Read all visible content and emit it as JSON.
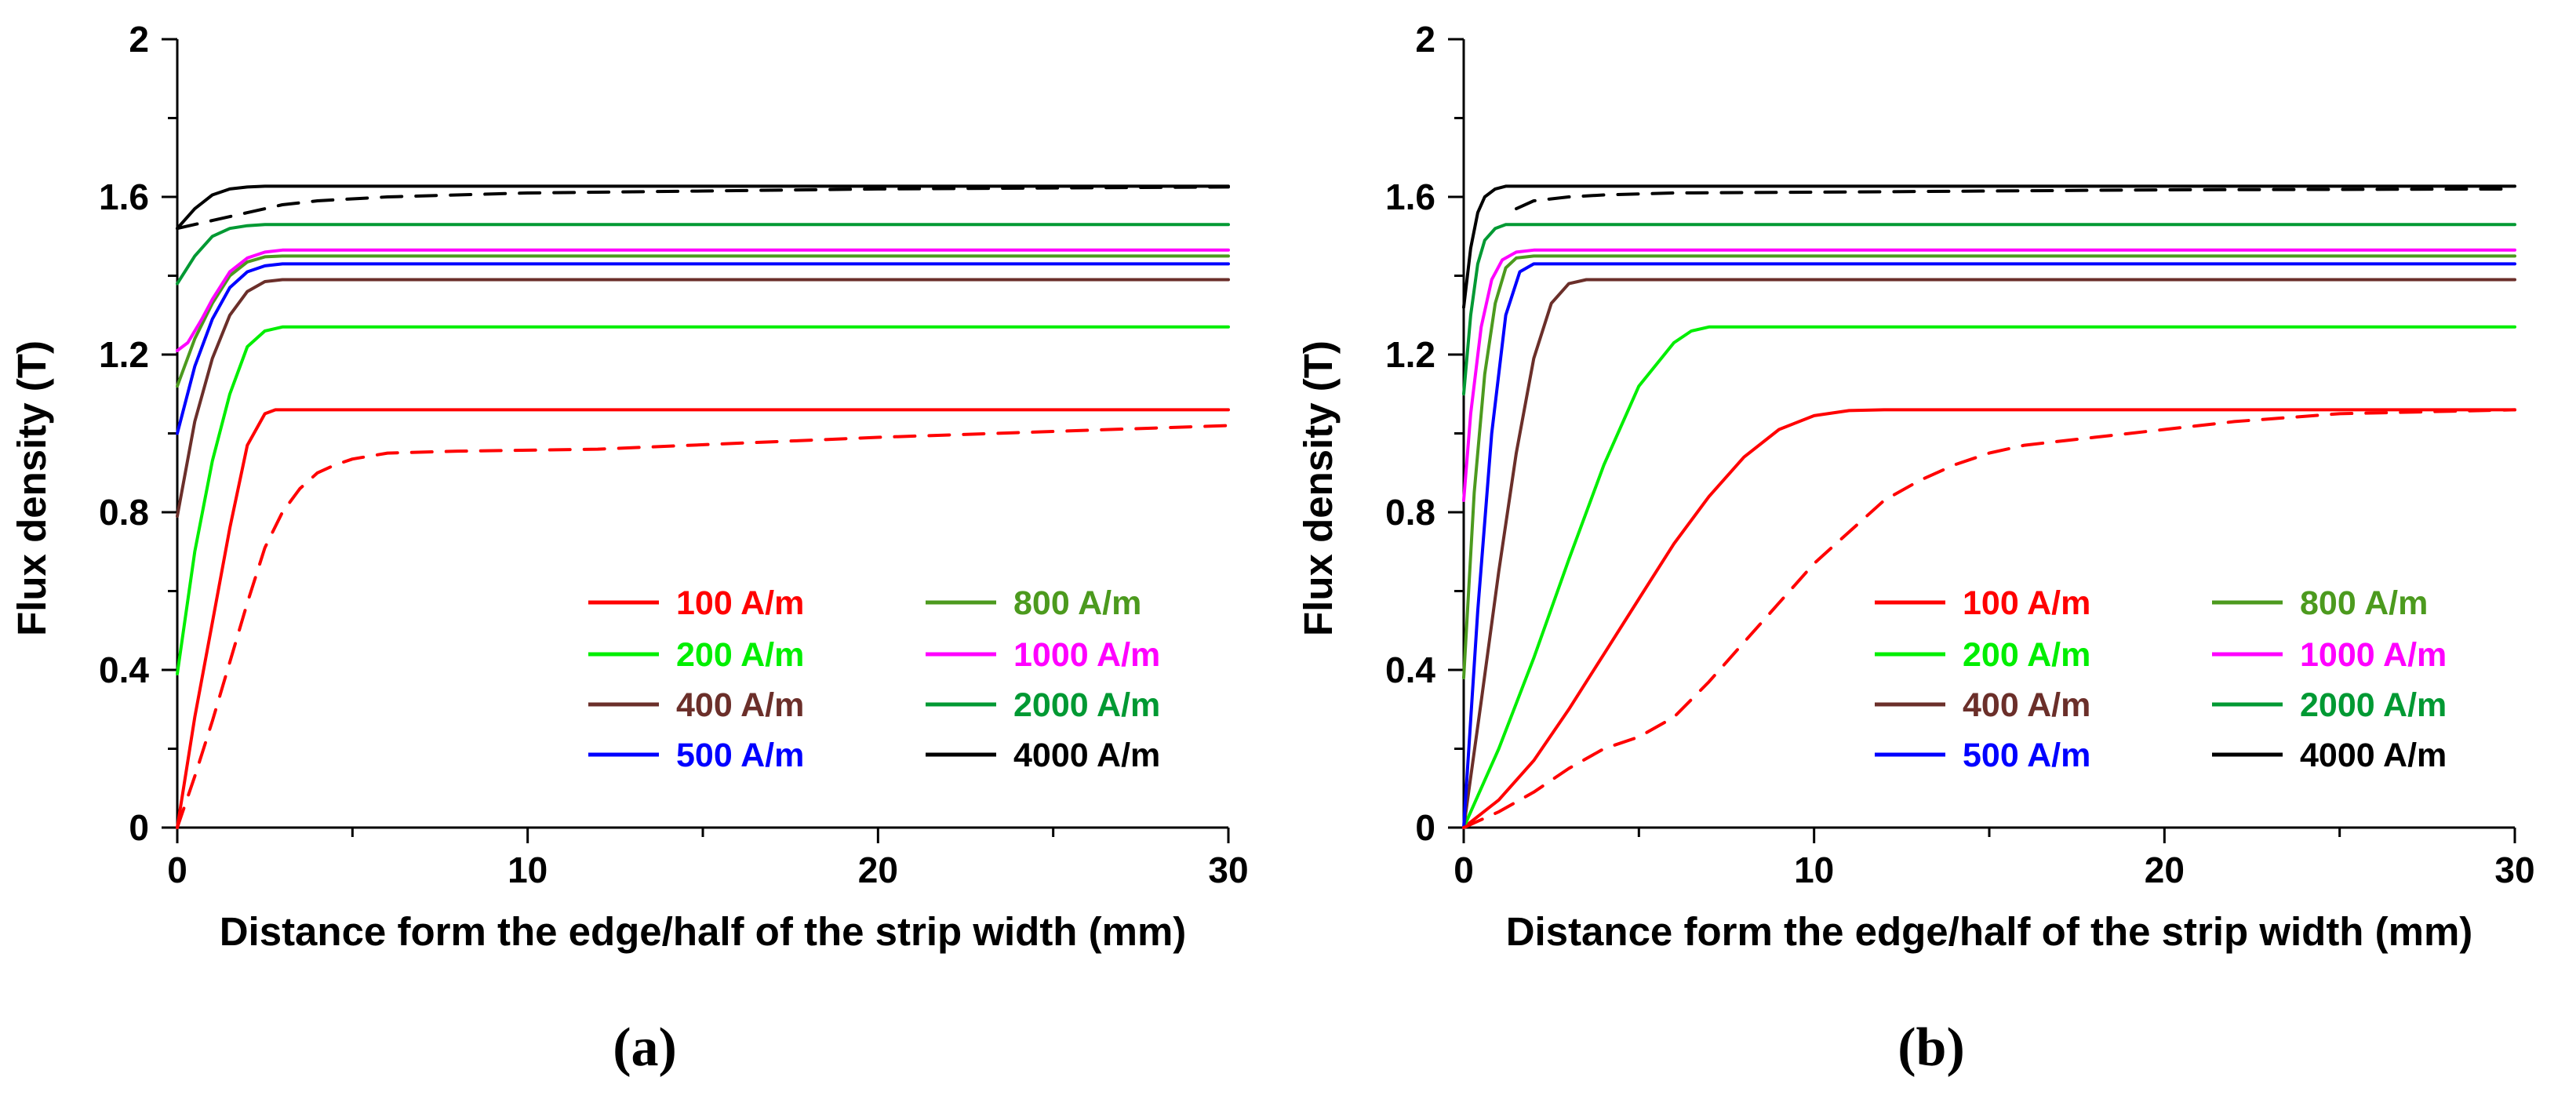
{
  "chart_data": [
    {
      "type": "line",
      "panel_label": "(a)",
      "xlabel": "Distance form the edge/half of the strip width (mm)",
      "ylabel": "Flux density (T)",
      "xlim": [
        0,
        30
      ],
      "ylim": [
        0,
        2
      ],
      "x_ticks": [
        0,
        10,
        20,
        30
      ],
      "y_ticks": [
        0,
        0.4,
        0.8,
        1.2,
        1.6,
        2
      ],
      "y_tick_labels": [
        "0",
        "0.4",
        "0.8",
        "1.2",
        "1.6",
        "2"
      ],
      "legend_placement": "bottom-right",
      "series": [
        {
          "name": "100 A/m",
          "color": "#ff0000",
          "style": "solid",
          "x": [
            0,
            0.5,
            1,
            1.5,
            2,
            2.5,
            2.8,
            3,
            30
          ],
          "y": [
            0,
            0.28,
            0.52,
            0.76,
            0.97,
            1.05,
            1.06,
            1.06,
            1.06
          ]
        },
        {
          "name": "200 A/m",
          "color": "#00ee00",
          "style": "solid",
          "x": [
            0,
            0.5,
            1,
            1.5,
            2,
            2.5,
            3,
            30
          ],
          "y": [
            0.39,
            0.7,
            0.93,
            1.1,
            1.22,
            1.26,
            1.27,
            1.27
          ]
        },
        {
          "name": "400 A/m",
          "color": "#6b2f2a",
          "style": "solid",
          "x": [
            0,
            0.5,
            1,
            1.5,
            2,
            2.5,
            3,
            30
          ],
          "y": [
            0.79,
            1.03,
            1.19,
            1.3,
            1.36,
            1.385,
            1.39,
            1.39
          ]
        },
        {
          "name": "500 A/m",
          "color": "#0000ff",
          "style": "solid",
          "x": [
            0,
            0.5,
            1,
            1.5,
            2,
            2.5,
            3,
            30
          ],
          "y": [
            1.0,
            1.17,
            1.29,
            1.37,
            1.41,
            1.425,
            1.43,
            1.43
          ]
        },
        {
          "name": "800 A/m",
          "color": "#4c9a1e",
          "style": "solid",
          "x": [
            0,
            0.5,
            1,
            1.5,
            2,
            2.5,
            3,
            30
          ],
          "y": [
            1.12,
            1.24,
            1.33,
            1.4,
            1.435,
            1.448,
            1.45,
            1.45
          ]
        },
        {
          "name": "1000 A/m",
          "color": "#ff00ff",
          "style": "solid",
          "x": [
            0,
            0.3,
            0.7,
            1,
            1.5,
            2,
            2.5,
            3,
            30
          ],
          "y": [
            1.21,
            1.23,
            1.29,
            1.34,
            1.41,
            1.445,
            1.46,
            1.465,
            1.465
          ]
        },
        {
          "name": "2000 A/m",
          "color": "#009933",
          "style": "solid",
          "x": [
            0,
            0.5,
            1,
            1.5,
            2,
            2.5,
            30
          ],
          "y": [
            1.38,
            1.45,
            1.5,
            1.52,
            1.527,
            1.53,
            1.53
          ]
        },
        {
          "name": "4000 A/m",
          "color": "#000000",
          "style": "solid",
          "x": [
            0,
            0.5,
            1,
            1.5,
            2,
            2.5,
            30
          ],
          "y": [
            1.52,
            1.57,
            1.605,
            1.62,
            1.625,
            1.627,
            1.627
          ]
        },
        {
          "name": "100 A/m (dashed)",
          "color": "#ff0000",
          "style": "dashed",
          "x": [
            0,
            0.5,
            1,
            1.5,
            2,
            2.5,
            3,
            3.5,
            4,
            4.5,
            5,
            6,
            8,
            12,
            20,
            30
          ],
          "y": [
            0,
            0.13,
            0.27,
            0.42,
            0.57,
            0.71,
            0.8,
            0.86,
            0.9,
            0.92,
            0.935,
            0.95,
            0.955,
            0.96,
            0.99,
            1.02
          ]
        },
        {
          "name": "4000 A/m (dashed)",
          "color": "#000000",
          "style": "dashed",
          "x": [
            0,
            1,
            2,
            3,
            4,
            6,
            10,
            15,
            20,
            30
          ],
          "y": [
            1.52,
            1.54,
            1.56,
            1.58,
            1.59,
            1.6,
            1.61,
            1.615,
            1.62,
            1.625
          ]
        }
      ]
    },
    {
      "type": "line",
      "panel_label": "(b)",
      "xlabel": "Distance form the edge/half of the strip width (mm)",
      "ylabel": "Flux density (T)",
      "xlim": [
        0,
        30
      ],
      "ylim": [
        0,
        2
      ],
      "x_ticks": [
        0,
        10,
        20,
        30
      ],
      "y_ticks": [
        0,
        0.4,
        0.8,
        1.2,
        1.6,
        2
      ],
      "y_tick_labels": [
        "0",
        "0.4",
        "0.8",
        "1.2",
        "1.6",
        "2"
      ],
      "legend_placement": "bottom-right",
      "series": [
        {
          "name": "100 A/m",
          "color": "#ff0000",
          "style": "solid",
          "x": [
            0,
            1,
            2,
            3,
            4,
            5,
            6,
            7,
            8,
            9,
            10,
            11,
            12,
            14,
            30
          ],
          "y": [
            0,
            0.07,
            0.17,
            0.3,
            0.44,
            0.58,
            0.72,
            0.84,
            0.94,
            1.01,
            1.045,
            1.058,
            1.06,
            1.06,
            1.06
          ]
        },
        {
          "name": "200 A/m",
          "color": "#00ee00",
          "style": "solid",
          "x": [
            0,
            1,
            2,
            3,
            4,
            5,
            6,
            6.5,
            7,
            30
          ],
          "y": [
            0,
            0.2,
            0.43,
            0.68,
            0.92,
            1.12,
            1.23,
            1.26,
            1.27,
            1.27
          ]
        },
        {
          "name": "400 A/m",
          "color": "#6b2f2a",
          "style": "solid",
          "x": [
            0,
            0.5,
            1,
            1.5,
            2,
            2.5,
            3,
            3.5,
            30
          ],
          "y": [
            0,
            0.32,
            0.65,
            0.95,
            1.19,
            1.33,
            1.38,
            1.39,
            1.39
          ]
        },
        {
          "name": "500 A/m",
          "color": "#0000ff",
          "style": "solid",
          "x": [
            0,
            0.4,
            0.8,
            1.2,
            1.6,
            2,
            30
          ],
          "y": [
            0,
            0.55,
            1.0,
            1.3,
            1.41,
            1.43,
            1.43
          ]
        },
        {
          "name": "800 A/m",
          "color": "#4c9a1e",
          "style": "solid",
          "x": [
            0,
            0.3,
            0.6,
            0.9,
            1.2,
            1.5,
            2,
            30
          ],
          "y": [
            0.38,
            0.85,
            1.15,
            1.33,
            1.42,
            1.445,
            1.45,
            1.45
          ]
        },
        {
          "name": "1000 A/m",
          "color": "#ff00ff",
          "style": "solid",
          "x": [
            0,
            0.2,
            0.5,
            0.8,
            1.1,
            1.5,
            2,
            30
          ],
          "y": [
            0.83,
            1.05,
            1.27,
            1.39,
            1.44,
            1.46,
            1.465,
            1.465
          ]
        },
        {
          "name": "2000 A/m",
          "color": "#009933",
          "style": "solid",
          "x": [
            0,
            0.2,
            0.4,
            0.6,
            0.9,
            1.2,
            30
          ],
          "y": [
            1.1,
            1.3,
            1.43,
            1.49,
            1.52,
            1.53,
            1.53
          ]
        },
        {
          "name": "4000 A/m",
          "color": "#000000",
          "style": "solid",
          "x": [
            0,
            0.2,
            0.4,
            0.6,
            0.9,
            1.2,
            30
          ],
          "y": [
            1.32,
            1.47,
            1.56,
            1.6,
            1.62,
            1.627,
            1.627
          ]
        },
        {
          "name": "100 A/m (dashed)",
          "color": "#ff0000",
          "style": "dashed",
          "x": [
            0,
            1,
            2,
            3,
            4,
            5,
            6,
            7,
            8,
            9,
            10,
            11,
            12,
            13,
            14,
            15,
            16,
            18,
            20,
            22,
            25,
            30
          ],
          "y": [
            0,
            0.04,
            0.09,
            0.15,
            0.2,
            0.23,
            0.28,
            0.37,
            0.47,
            0.57,
            0.67,
            0.75,
            0.83,
            0.88,
            0.92,
            0.95,
            0.97,
            0.99,
            1.01,
            1.03,
            1.05,
            1.06
          ]
        },
        {
          "name": "4000 A/m (dashed)",
          "color": "#000000",
          "style": "dashed",
          "x": [
            1.5,
            2,
            3,
            4,
            6,
            10,
            15,
            20,
            30
          ],
          "y": [
            1.57,
            1.59,
            1.6,
            1.605,
            1.61,
            1.612,
            1.615,
            1.618,
            1.62
          ]
        }
      ]
    }
  ],
  "legend": [
    {
      "label": "100 A/m",
      "color": "#ff0000"
    },
    {
      "label": "200 A/m",
      "color": "#00ee00"
    },
    {
      "label": "400 A/m",
      "color": "#6b2f2a"
    },
    {
      "label": "500 A/m",
      "color": "#0000ff"
    },
    {
      "label": "800 A/m",
      "color": "#4c9a1e"
    },
    {
      "label": "1000 A/m",
      "color": "#ff00ff"
    },
    {
      "label": "2000 A/m",
      "color": "#009933"
    },
    {
      "label": "4000 A/m",
      "color": "#000000"
    }
  ],
  "legend_text_colors": [
    "#ff0000",
    "#00ee00",
    "#6b2f2a",
    "#0000ff",
    "#4c9a1e",
    "#ff00ff",
    "#009933",
    "#000000"
  ]
}
